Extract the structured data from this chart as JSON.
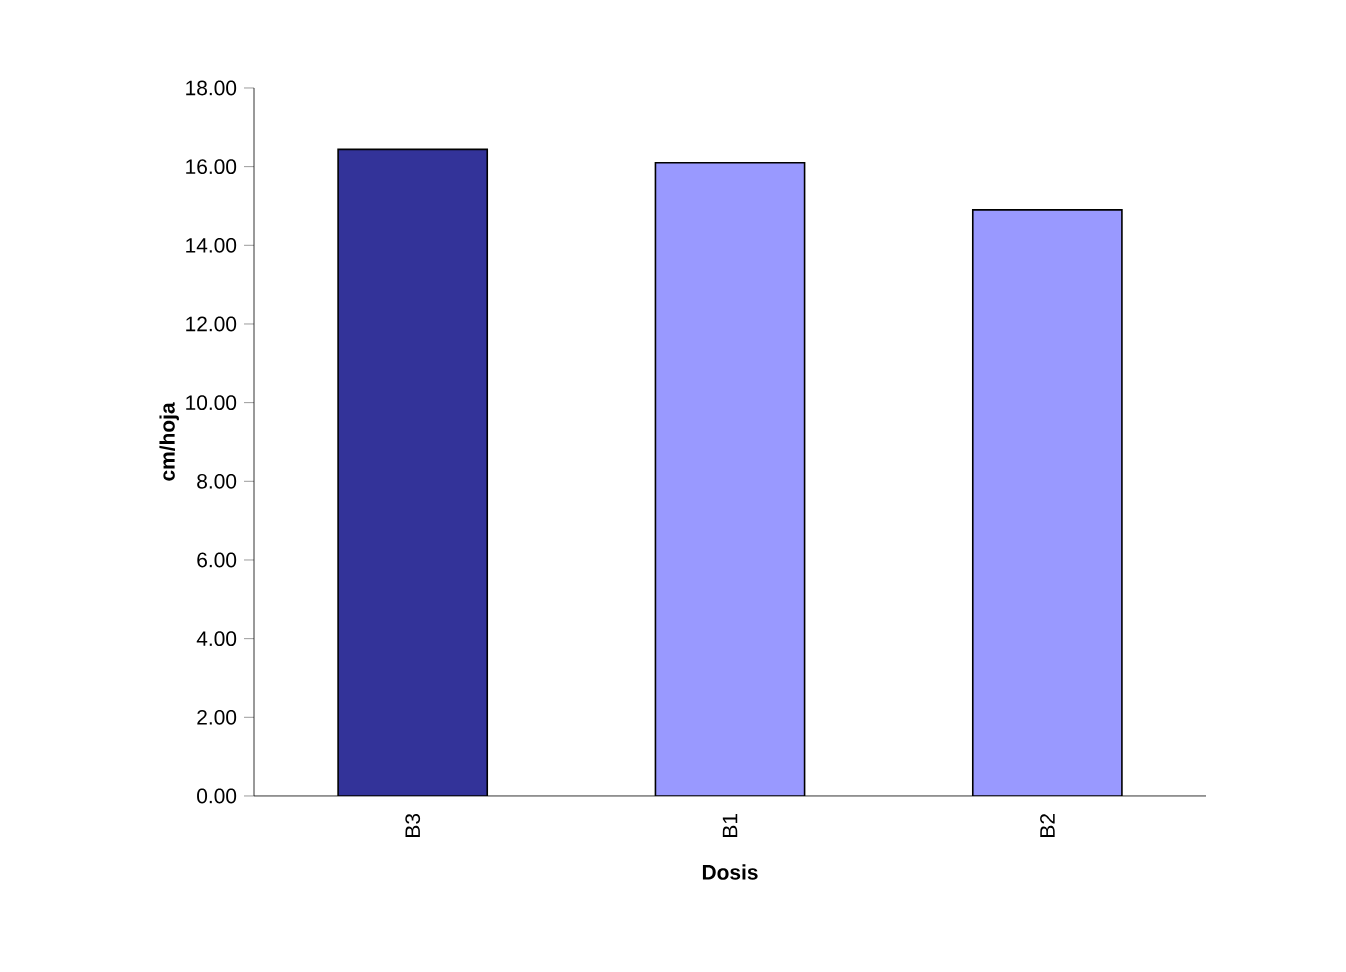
{
  "chart_data": {
    "type": "bar",
    "xlabel": "Dosis",
    "ylabel": "cm/hoja",
    "categories": [
      "B3",
      "B1",
      "B2"
    ],
    "values": [
      16.44,
      16.1,
      14.9
    ],
    "colors": [
      "#333399",
      "#9999ff",
      "#9999ff"
    ],
    "ylim": [
      0,
      18
    ],
    "yticks": [
      {
        "value": 0,
        "label": "0.00"
      },
      {
        "value": 2,
        "label": "2.00"
      },
      {
        "value": 4,
        "label": "4.00"
      },
      {
        "value": 6,
        "label": "6.00"
      },
      {
        "value": 8,
        "label": "8.00"
      },
      {
        "value": 10,
        "label": "10.00"
      },
      {
        "value": 12,
        "label": "12.00"
      },
      {
        "value": 14,
        "label": "14.00"
      },
      {
        "value": 16,
        "label": "16.00"
      },
      {
        "value": 18,
        "label": "18.00"
      }
    ],
    "grid": false
  }
}
